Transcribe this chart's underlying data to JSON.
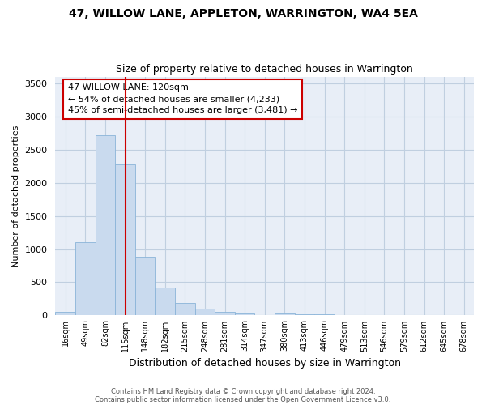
{
  "title": "47, WILLOW LANE, APPLETON, WARRINGTON, WA4 5EA",
  "subtitle": "Size of property relative to detached houses in Warrington",
  "xlabel": "Distribution of detached houses by size in Warrington",
  "ylabel": "Number of detached properties",
  "footer_line1": "Contains HM Land Registry data © Crown copyright and database right 2024.",
  "footer_line2": "Contains public sector information licensed under the Open Government Licence v3.0.",
  "bar_labels": [
    "16sqm",
    "49sqm",
    "82sqm",
    "115sqm",
    "148sqm",
    "182sqm",
    "215sqm",
    "248sqm",
    "281sqm",
    "314sqm",
    "347sqm",
    "380sqm",
    "413sqm",
    "446sqm",
    "479sqm",
    "513sqm",
    "546sqm",
    "579sqm",
    "612sqm",
    "645sqm",
    "678sqm"
  ],
  "bar_values": [
    50,
    1100,
    2720,
    2280,
    880,
    415,
    185,
    105,
    60,
    35,
    0,
    25,
    20,
    15,
    0,
    0,
    0,
    0,
    0,
    0,
    0
  ],
  "bar_color": "#c9daee",
  "bar_edge_color": "#8ab4d8",
  "property_line_x": 3.0,
  "property_line_color": "#cc0000",
  "annotation_text": "47 WILLOW LANE: 120sqm\n← 54% of detached houses are smaller (4,233)\n45% of semi-detached houses are larger (3,481) →",
  "annotation_box_color": "#cc0000",
  "ylim": [
    0,
    3600
  ],
  "yticks": [
    0,
    500,
    1000,
    1500,
    2000,
    2500,
    3000,
    3500
  ],
  "bg_color": "#ffffff",
  "plot_bg_color": "#e8eef7",
  "grid_color": "#c0cfe0"
}
